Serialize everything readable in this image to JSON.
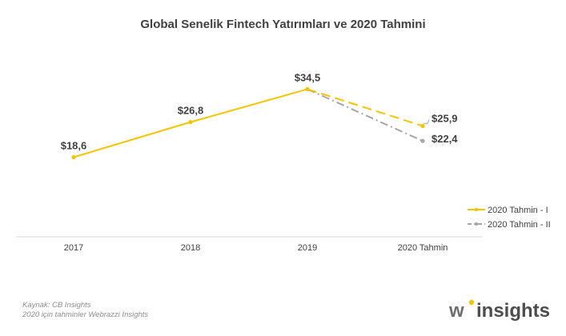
{
  "chart_data": {
    "type": "line",
    "title": "Global Senelik Fintech Yatırımları  ve 2020 Tahmini",
    "categories": [
      "2017",
      "2018",
      "2019",
      "2020 Tahmin"
    ],
    "series": [
      {
        "name": "2020 Tahmin - I",
        "values": [
          18.6,
          26.8,
          34.5,
          25.9
        ],
        "labels": [
          "$18,6",
          "$26,8",
          "$34,5",
          "$25,9"
        ],
        "color": "#f5c400",
        "dash": "dashed"
      },
      {
        "name": "2020 Tahmin - II",
        "values": [
          null,
          null,
          34.5,
          22.4
        ],
        "labels": [
          "",
          "",
          "",
          "$22,4"
        ],
        "color": "#a6a6a6",
        "dash": "dashdot"
      }
    ],
    "ylim": [
      0,
      40
    ],
    "grid": false,
    "legend_position": "right"
  },
  "footer": {
    "source_line1": "Kaynak: CB Insights",
    "source_line2": "2020 için tahminler Webrazzi Insights"
  },
  "brand": {
    "w": "w",
    "name": "insights",
    "dot_color": "#f5c400"
  }
}
